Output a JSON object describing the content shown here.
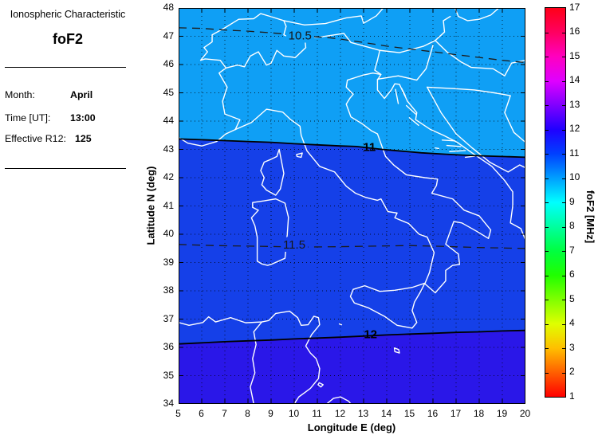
{
  "panel": {
    "title": "Ionospheric Characteristic",
    "subtitle": "foF2",
    "fields": [
      {
        "label": "Month:",
        "value": "April"
      },
      {
        "label": "Time [UT]:",
        "value": "13:00"
      },
      {
        "label": "Effective R12:",
        "value": "125"
      }
    ]
  },
  "chart_data": {
    "type": "heatmap",
    "variant": "filled contour map over Italy / central Mediterranean",
    "title": "foF2",
    "xlabel": "Longitude E (deg)",
    "ylabel": "Latitude N (deg)",
    "xlim": [
      5,
      20
    ],
    "ylim": [
      34,
      48
    ],
    "xticks": [
      5,
      6,
      7,
      8,
      9,
      10,
      11,
      12,
      13,
      14,
      15,
      16,
      17,
      18,
      19,
      20
    ],
    "yticks": [
      34,
      35,
      36,
      37,
      38,
      39,
      40,
      41,
      42,
      43,
      44,
      45,
      46,
      47,
      48
    ],
    "grid": "dotted",
    "coastline_color": "#ffffff",
    "background_bands": [
      {
        "value_range": [
          10,
          11
        ],
        "color": "#0F9FF5",
        "region": "north of the 11 MHz contour"
      },
      {
        "value_range": [
          11,
          12
        ],
        "color": "#1540E8",
        "region": "between the 11 and 12 MHz contours"
      },
      {
        "value_range": [
          12,
          13
        ],
        "color": "#2A17E8",
        "region": "south of the 12 MHz contour"
      }
    ],
    "contours": [
      {
        "level": 10.5,
        "label": "10.5",
        "style": "dashed",
        "label_pos": [
          10.25,
          47.03
        ],
        "label_weight": "normal",
        "halo": "#0F9FF5",
        "points": [
          [
            5,
            47.3
          ],
          [
            6,
            47.28
          ],
          [
            7,
            47.22
          ],
          [
            8,
            47.18
          ],
          [
            9,
            47.12
          ],
          [
            9.6,
            47.08
          ],
          [
            10.9,
            46.98
          ],
          [
            11.5,
            46.95
          ],
          [
            12,
            46.9
          ],
          [
            13,
            46.78
          ],
          [
            14,
            46.65
          ],
          [
            15,
            46.55
          ],
          [
            16,
            46.45
          ],
          [
            17,
            46.35
          ],
          [
            18,
            46.25
          ],
          [
            19,
            46.15
          ],
          [
            20,
            46.07
          ]
        ]
      },
      {
        "level": 11,
        "label": "11",
        "style": "solid",
        "label_pos": [
          13.25,
          43.08
        ],
        "label_weight": "bold",
        "fill_below": "#1540E8",
        "points": [
          [
            5,
            43.37
          ],
          [
            6,
            43.34
          ],
          [
            7,
            43.31
          ],
          [
            8,
            43.28
          ],
          [
            9,
            43.25
          ],
          [
            10,
            43.2
          ],
          [
            11,
            43.16
          ],
          [
            12,
            43.12
          ],
          [
            12.7,
            43.1
          ],
          [
            13.8,
            43.0
          ],
          [
            14.5,
            42.95
          ],
          [
            15.5,
            42.88
          ],
          [
            16.5,
            42.83
          ],
          [
            17.5,
            42.79
          ],
          [
            18.5,
            42.76
          ],
          [
            19.3,
            42.74
          ],
          [
            20,
            42.72
          ]
        ]
      },
      {
        "level": 11.5,
        "label": "11.5",
        "style": "dashed",
        "label_pos": [
          10.0,
          39.64
        ],
        "label_weight": "normal",
        "halo": "#1540E8",
        "points": [
          [
            5,
            39.64
          ],
          [
            6.5,
            39.6
          ],
          [
            8,
            39.58
          ],
          [
            9.4,
            39.56
          ],
          [
            10.7,
            39.55
          ],
          [
            12,
            39.56
          ],
          [
            13.5,
            39.58
          ],
          [
            15,
            39.6
          ],
          [
            16.5,
            39.57
          ],
          [
            18,
            39.53
          ],
          [
            20,
            39.5
          ]
        ]
      },
      {
        "level": 12,
        "label": "12",
        "style": "solid",
        "label_pos": [
          13.3,
          36.46
        ],
        "label_weight": "bold",
        "fill_below": "#2A17E8",
        "points": [
          [
            5,
            36.12
          ],
          [
            6,
            36.16
          ],
          [
            7,
            36.2
          ],
          [
            8,
            36.23
          ],
          [
            9,
            36.26
          ],
          [
            10,
            36.3
          ],
          [
            11,
            36.33
          ],
          [
            12,
            36.36
          ],
          [
            13,
            36.4
          ],
          [
            14,
            36.44
          ],
          [
            15,
            36.47
          ],
          [
            16,
            36.5
          ],
          [
            17,
            36.53
          ],
          [
            18,
            36.55
          ],
          [
            19,
            36.58
          ],
          [
            20,
            36.6
          ]
        ]
      }
    ],
    "colorbar": {
      "label": "foF2 [MHz]",
      "min": 1,
      "max": 17,
      "ticks": [
        1,
        2,
        3,
        4,
        5,
        6,
        7,
        8,
        9,
        10,
        11,
        12,
        13,
        14,
        15,
        16,
        17
      ],
      "colors": [
        "#ff0000",
        "#ff5f00",
        "#ffbf00",
        "#dfff00",
        "#80ff00",
        "#20ff00",
        "#00ff40",
        "#00ff9f",
        "#00ffff",
        "#009fff",
        "#0040ff",
        "#2000ff",
        "#8000ff",
        "#df00ff",
        "#ff00bf",
        "#ff0060",
        "#ff0018"
      ]
    }
  }
}
